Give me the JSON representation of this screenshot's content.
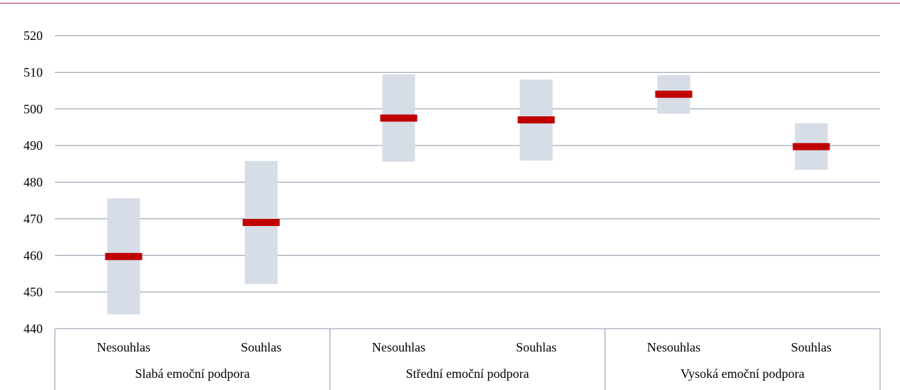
{
  "chart_data": {
    "type": "range-bar",
    "title": "",
    "xlabel": "",
    "ylabel": "",
    "ylim": [
      440,
      520
    ],
    "yticks": [
      440,
      450,
      460,
      470,
      480,
      490,
      500,
      510,
      520
    ],
    "grid": true,
    "groups": [
      {
        "label": "Slabá emoční podpora",
        "categories": [
          {
            "label": "Nesouhlas",
            "mean": 459.7,
            "low": 443.9,
            "high": 475.6
          },
          {
            "label": "Souhlas",
            "mean": 469.0,
            "low": 452.2,
            "high": 485.8
          }
        ]
      },
      {
        "label": "Střední emoční podpora",
        "categories": [
          {
            "label": "Nesouhlas",
            "mean": 497.5,
            "low": 485.6,
            "high": 509.4
          },
          {
            "label": "Souhlas",
            "mean": 497.0,
            "low": 485.9,
            "high": 508.0
          }
        ]
      },
      {
        "label": "Vysoká emoční podpora",
        "categories": [
          {
            "label": "Nesouhlas",
            "mean": 504.0,
            "low": 498.7,
            "high": 509.2
          },
          {
            "label": "Souhlas",
            "mean": 489.7,
            "low": 483.4,
            "high": 496.1
          }
        ]
      }
    ],
    "colors": {
      "range": "#d6dde6",
      "mean": "#c00000",
      "grid": "#8895a8",
      "axis": "#8895a8",
      "top_rule": "#a0305a"
    }
  }
}
